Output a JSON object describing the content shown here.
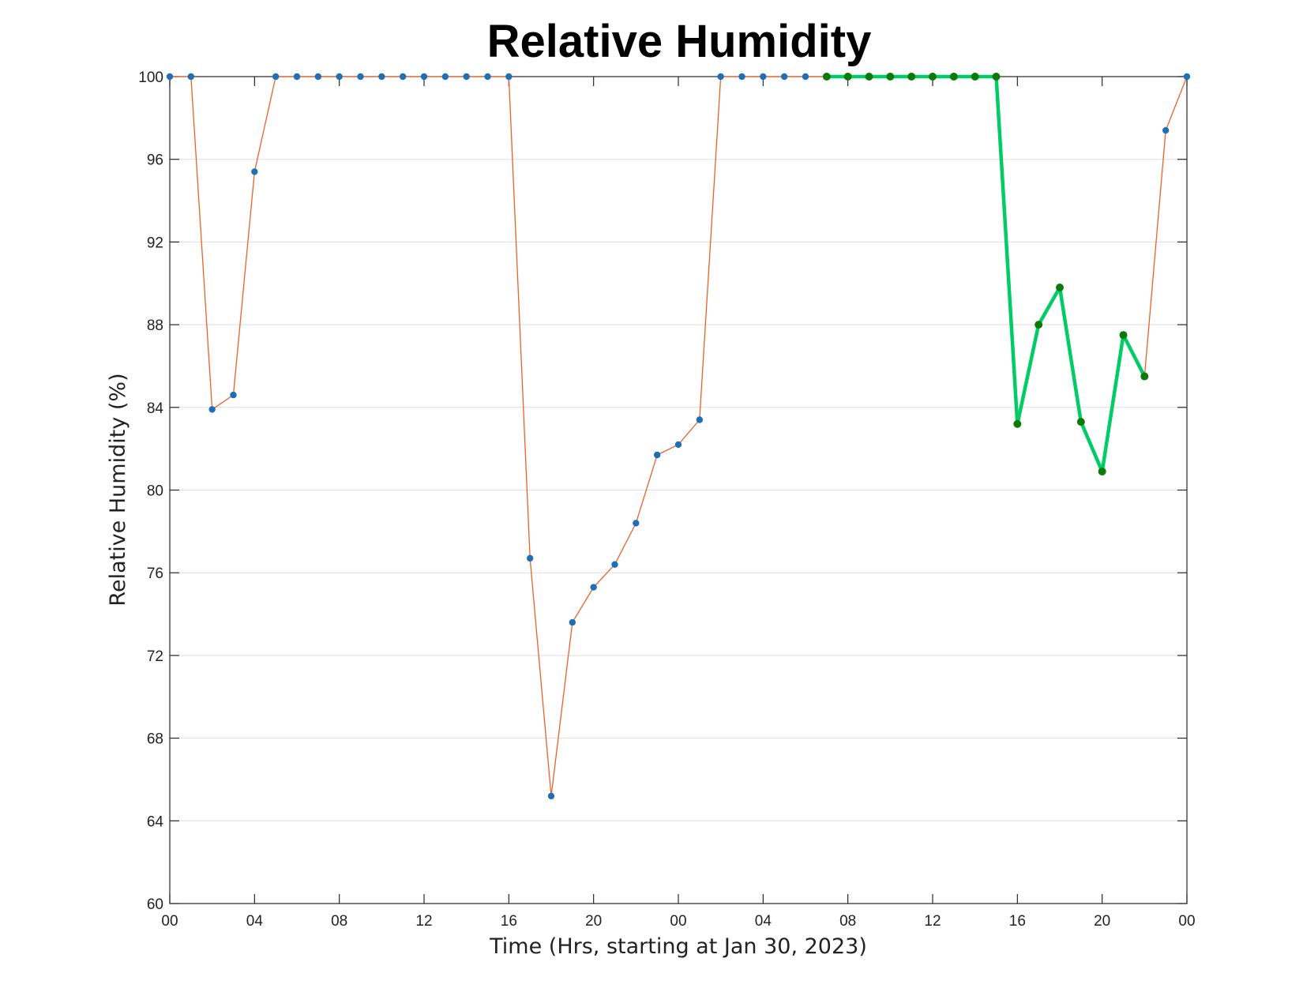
{
  "chart_data": {
    "type": "line",
    "title": "Relative Humidity",
    "xlabel": "Time (Hrs, starting at Jan 30, 2023)",
    "ylabel": "Relative Humidity (%)",
    "xlim": [
      0,
      48
    ],
    "ylim": [
      60,
      100
    ],
    "x_ticks": [
      0,
      4,
      8,
      12,
      16,
      20,
      24,
      28,
      32,
      36,
      40,
      44,
      48
    ],
    "x_tick_labels": [
      "00",
      "04",
      "08",
      "12",
      "16",
      "20",
      "00",
      "04",
      "08",
      "12",
      "16",
      "20",
      "00"
    ],
    "y_ticks": [
      60,
      64,
      68,
      72,
      76,
      80,
      84,
      88,
      92,
      96,
      100
    ],
    "y_tick_labels": [
      "60",
      "64",
      "68",
      "72",
      "76",
      "80",
      "84",
      "88",
      "92",
      "96",
      "100"
    ],
    "grid": "horizontal",
    "series": [
      {
        "color": "#e8622a",
        "marker_color": "#1f6fb5",
        "x": [
          0,
          1,
          2,
          3,
          4,
          5,
          6,
          7,
          8,
          9,
          10,
          11,
          12,
          13,
          14,
          15,
          16,
          17,
          18,
          19,
          20,
          21,
          22,
          23,
          24,
          25,
          26,
          27,
          28,
          29,
          30,
          31,
          32,
          33,
          34,
          35,
          36,
          37,
          38,
          39,
          40,
          41,
          42,
          43,
          44,
          45,
          46,
          47,
          48
        ],
        "y": [
          100,
          100,
          83.9,
          84.6,
          95.4,
          100,
          100,
          100,
          100,
          100,
          100,
          100,
          100,
          100,
          100,
          100,
          100,
          76.7,
          65.2,
          73.6,
          75.3,
          76.4,
          78.4,
          81.7,
          82.2,
          83.4,
          100,
          100,
          100,
          100,
          100,
          100,
          100,
          100,
          100,
          100,
          100,
          100,
          100,
          100,
          83.2,
          88,
          89.8,
          83.3,
          80.9,
          87.5,
          85.5,
          97.4,
          100
        ]
      },
      {
        "color": "#00cc66",
        "marker_color": "#0a7a0a",
        "x": [
          31,
          32,
          33,
          34,
          35,
          36,
          37,
          38,
          39,
          40,
          41,
          42,
          43,
          44,
          45,
          46
        ],
        "y": [
          100,
          100,
          100,
          100,
          100,
          100,
          100,
          100,
          100,
          83.2,
          88,
          89.8,
          83.3,
          80.9,
          87.5,
          85.5
        ]
      }
    ]
  }
}
